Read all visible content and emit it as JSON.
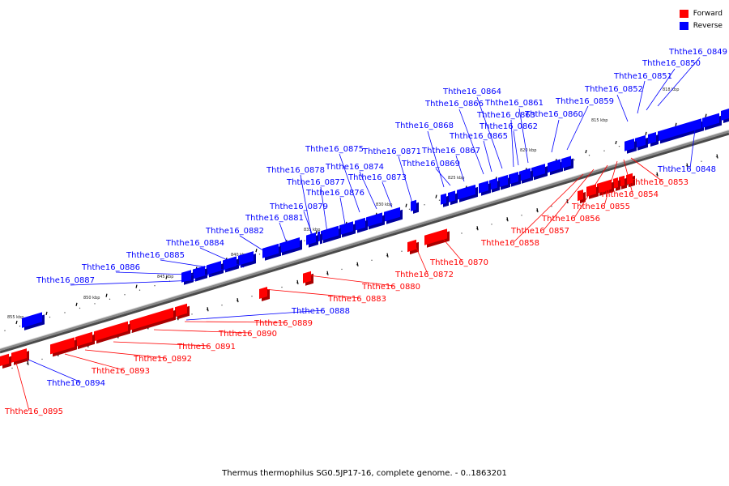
{
  "legend": [
    {
      "label": "Forward",
      "color": "#ff0000"
    },
    {
      "label": "Reverse",
      "color": "#0000ff"
    }
  ],
  "caption": "Thermus thermophilus SG0.5JP17-16, complete genome. - 0..1863201",
  "colors": {
    "forward": "#ff0000",
    "reverse": "#0000ff",
    "backbone": "#8a8a8a"
  },
  "scale": [
    {
      "kbp": 815,
      "label": "815 kbp"
    },
    {
      "kbp": 818,
      "label": "818 kbp"
    },
    {
      "kbp": 820,
      "label": "820 kbp"
    },
    {
      "kbp": 825,
      "label": "825 kbp"
    },
    {
      "kbp": 830,
      "label": "830 kbp"
    },
    {
      "kbp": 835,
      "label": "835 kbp"
    },
    {
      "kbp": 840,
      "label": "840 kbp"
    },
    {
      "kbp": 845,
      "label": "845 kbp"
    },
    {
      "kbp": 850,
      "label": "850 kbp"
    },
    {
      "kbp": 855,
      "label": "855 kbp"
    }
  ],
  "genes": [
    {
      "id": "Ththe16_0849",
      "strand": "reverse"
    },
    {
      "id": "Ththe16_0850",
      "strand": "reverse"
    },
    {
      "id": "Ththe16_0851",
      "strand": "reverse"
    },
    {
      "id": "Ththe16_0852",
      "strand": "reverse"
    },
    {
      "id": "Ththe16_0864",
      "strand": "reverse"
    },
    {
      "id": "Ththe16_0866",
      "strand": "reverse"
    },
    {
      "id": "Ththe16_0861",
      "strand": "reverse"
    },
    {
      "id": "Ththe16_0859",
      "strand": "reverse"
    },
    {
      "id": "Ththe16_0863",
      "strand": "reverse"
    },
    {
      "id": "Ththe16_0860",
      "strand": "reverse"
    },
    {
      "id": "Ththe16_0862",
      "strand": "reverse"
    },
    {
      "id": "Ththe16_0868",
      "strand": "reverse"
    },
    {
      "id": "Ththe16_0865",
      "strand": "reverse"
    },
    {
      "id": "Ththe16_0875",
      "strand": "reverse"
    },
    {
      "id": "Ththe16_0871",
      "strand": "reverse"
    },
    {
      "id": "Ththe16_0867",
      "strand": "reverse"
    },
    {
      "id": "Ththe16_0869",
      "strand": "reverse"
    },
    {
      "id": "Ththe16_0874",
      "strand": "reverse"
    },
    {
      "id": "Ththe16_0878",
      "strand": "reverse"
    },
    {
      "id": "Ththe16_0873",
      "strand": "reverse"
    },
    {
      "id": "Ththe16_0877",
      "strand": "reverse"
    },
    {
      "id": "Ththe16_0876",
      "strand": "reverse"
    },
    {
      "id": "Ththe16_0879",
      "strand": "reverse"
    },
    {
      "id": "Ththe16_0881",
      "strand": "reverse"
    },
    {
      "id": "Ththe16_0882",
      "strand": "reverse"
    },
    {
      "id": "Ththe16_0884",
      "strand": "reverse"
    },
    {
      "id": "Ththe16_0885",
      "strand": "reverse"
    },
    {
      "id": "Ththe16_0886",
      "strand": "reverse"
    },
    {
      "id": "Ththe16_0887",
      "strand": "reverse"
    },
    {
      "id": "Ththe16_0888",
      "strand": "reverse"
    },
    {
      "id": "Ththe16_0894",
      "strand": "reverse"
    },
    {
      "id": "Ththe16_0848",
      "strand": "reverse"
    },
    {
      "id": "Ththe16_0853",
      "strand": "forward"
    },
    {
      "id": "Ththe16_0854",
      "strand": "forward"
    },
    {
      "id": "Ththe16_0855",
      "strand": "forward"
    },
    {
      "id": "Ththe16_0856",
      "strand": "forward"
    },
    {
      "id": "Ththe16_0857",
      "strand": "forward"
    },
    {
      "id": "Ththe16_0858",
      "strand": "forward"
    },
    {
      "id": "Ththe16_0870",
      "strand": "forward"
    },
    {
      "id": "Ththe16_0872",
      "strand": "forward"
    },
    {
      "id": "Ththe16_0880",
      "strand": "forward"
    },
    {
      "id": "Ththe16_0883",
      "strand": "forward"
    },
    {
      "id": "Ththe16_0889",
      "strand": "forward"
    },
    {
      "id": "Ththe16_0890",
      "strand": "forward"
    },
    {
      "id": "Ththe16_0891",
      "strand": "forward"
    },
    {
      "id": "Ththe16_0892",
      "strand": "forward"
    },
    {
      "id": "Ththe16_0893",
      "strand": "forward"
    },
    {
      "id": "Ththe16_0895",
      "strand": "forward"
    }
  ]
}
